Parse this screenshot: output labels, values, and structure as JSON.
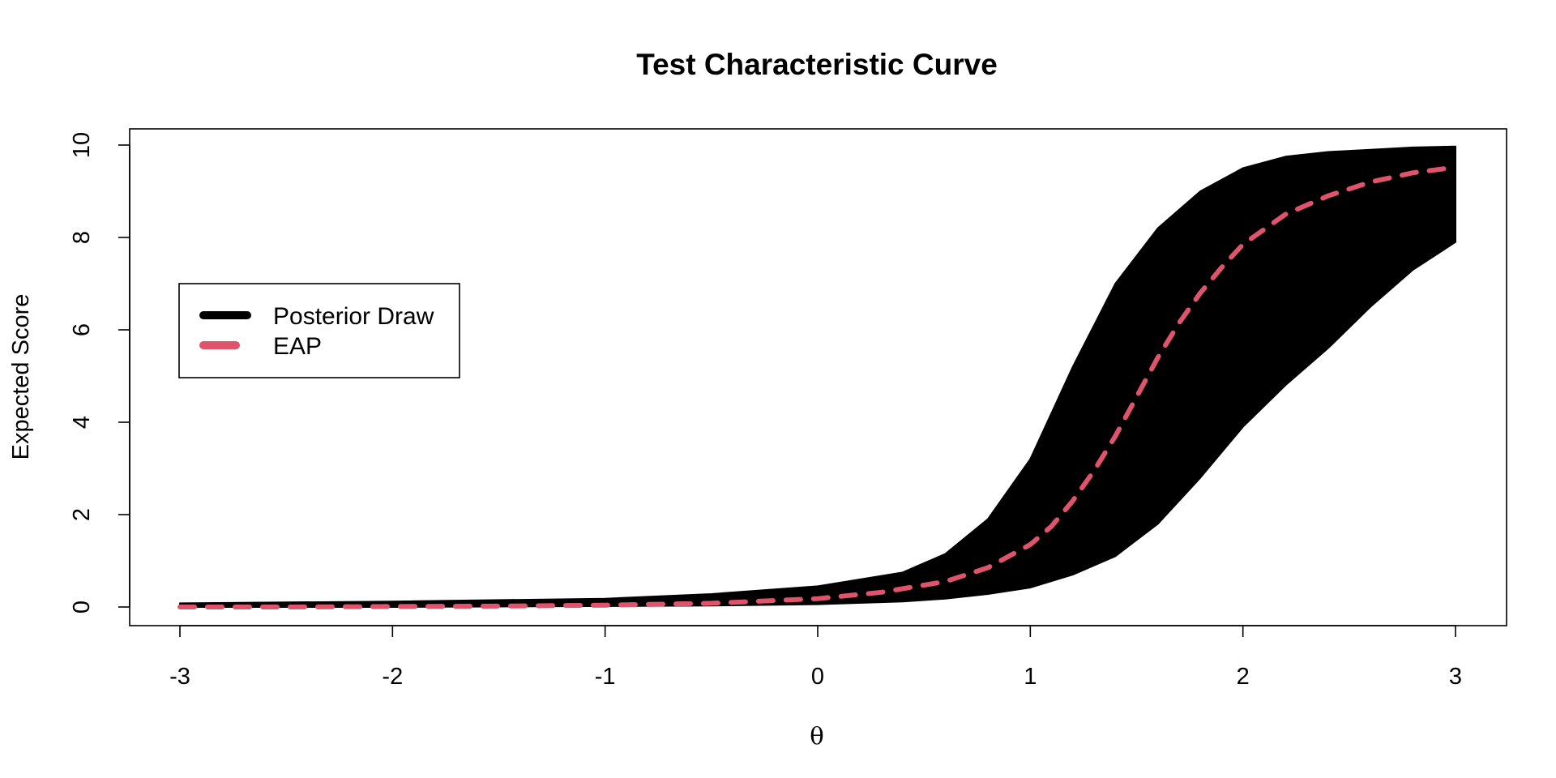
{
  "chart_data": {
    "type": "line",
    "title": "Test Characteristic Curve",
    "xlabel": "θ",
    "ylabel": "Expected Score",
    "xlim": [
      -3,
      3
    ],
    "ylim": [
      0,
      10
    ],
    "x_ticks": [
      -3,
      -2,
      -1,
      0,
      1,
      2,
      3
    ],
    "y_ticks": [
      0,
      2,
      4,
      6,
      8,
      10
    ],
    "grid": false,
    "legend": {
      "placement": "left",
      "entries": [
        {
          "label": "Posterior Draw",
          "color": "#000000",
          "style": "solid"
        },
        {
          "label": "EAP",
          "color": "#DF536B",
          "style": "dashed"
        }
      ]
    },
    "posterior_band": {
      "color": "#000000",
      "x": [
        -3,
        -2,
        -1,
        -0.5,
        0,
        0.4,
        0.6,
        0.8,
        1.0,
        1.2,
        1.4,
        1.6,
        1.8,
        2.0,
        2.2,
        2.4,
        2.6,
        2.8,
        3.0
      ],
      "lower": [
        0.0,
        0.0,
        0.02,
        0.03,
        0.06,
        0.12,
        0.18,
        0.28,
        0.42,
        0.7,
        1.1,
        1.8,
        2.8,
        3.9,
        4.8,
        5.6,
        6.5,
        7.3,
        7.9
      ],
      "upper": [
        0.08,
        0.12,
        0.18,
        0.28,
        0.45,
        0.75,
        1.15,
        1.9,
        3.2,
        5.2,
        7.0,
        8.2,
        9.0,
        9.5,
        9.75,
        9.85,
        9.9,
        9.95,
        9.97
      ]
    },
    "series": [
      {
        "name": "EAP",
        "color": "#DF536B",
        "style": "dashed",
        "x": [
          -3,
          -2.5,
          -2,
          -1.5,
          -1,
          -0.5,
          0,
          0.3,
          0.6,
          0.8,
          1.0,
          1.1,
          1.2,
          1.3,
          1.4,
          1.5,
          1.6,
          1.7,
          1.8,
          1.9,
          2.0,
          2.2,
          2.4,
          2.6,
          2.8,
          3.0
        ],
        "values": [
          0.0,
          0.0,
          0.01,
          0.02,
          0.04,
          0.08,
          0.18,
          0.32,
          0.55,
          0.85,
          1.35,
          1.75,
          2.3,
          2.95,
          3.7,
          4.55,
          5.4,
          6.15,
          6.8,
          7.35,
          7.85,
          8.5,
          8.9,
          9.2,
          9.4,
          9.52
        ]
      }
    ]
  }
}
